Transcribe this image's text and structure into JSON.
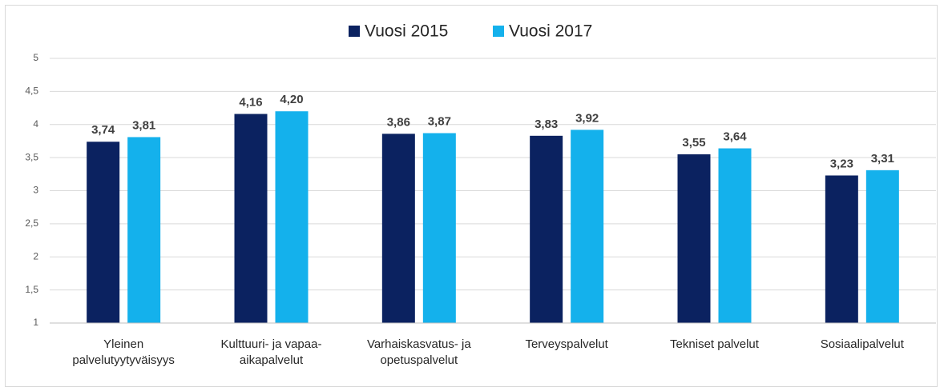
{
  "chart_data": {
    "type": "bar",
    "categories": [
      "Yleinen palvelutyytyväisyys",
      "Kulttuuri- ja vapaa-aikapalvelut",
      "Varhaiskasvatus- ja opetuspalvelut",
      "Terveyspalvelut",
      "Tekniset palvelut",
      "Sosiaalipalvelut"
    ],
    "series": [
      {
        "name": "Vuosi 2015",
        "color": "#0b2260",
        "values": [
          3.74,
          4.16,
          3.86,
          3.83,
          3.55,
          3.23
        ],
        "value_labels": [
          "3,74",
          "4,16",
          "3,86",
          "3,83",
          "3,55",
          "3,23"
        ]
      },
      {
        "name": "Vuosi 2017",
        "color": "#14b1ec",
        "values": [
          3.81,
          4.2,
          3.87,
          3.92,
          3.64,
          3.31
        ],
        "value_labels": [
          "3,81",
          "4,20",
          "3,87",
          "3,92",
          "3,64",
          "3,31"
        ]
      }
    ],
    "ylim": [
      1,
      5
    ],
    "yticks": [
      1,
      {
        "value": 1.5,
        "label": "1,5"
      },
      2,
      {
        "value": 2.5,
        "label": "2,5"
      },
      3,
      {
        "value": 3.5,
        "label": "3,5"
      },
      4,
      {
        "value": 4.5,
        "label": "4,5"
      },
      5
    ],
    "grid": true,
    "legend": "top"
  }
}
